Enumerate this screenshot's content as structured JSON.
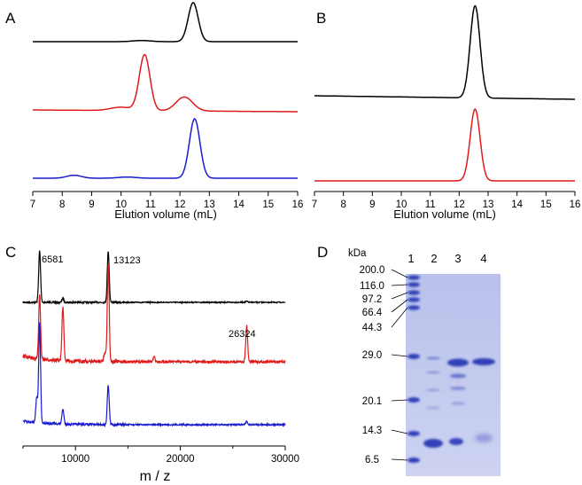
{
  "colors": {
    "black": "#000000",
    "red": "#e0191b",
    "blue": "#1a1acf",
    "gel_bg": "#c7cdee",
    "band": "#3340b8"
  },
  "chart_data": [
    {
      "panel": "A",
      "type": "line",
      "xlabel": "Elution volume (mL)",
      "xlim": [
        7,
        16
      ],
      "xticks": [
        7,
        8,
        9,
        10,
        11,
        12,
        13,
        14,
        15,
        16
      ],
      "series": [
        {
          "color": "black",
          "baseline": 0.0,
          "peaks": [
            {
              "x": 12.45,
              "h": 1.0,
              "w": 0.17
            },
            {
              "x": 10.7,
              "h": 0.03,
              "w": 0.3
            }
          ]
        },
        {
          "color": "red",
          "baseline": 0.0,
          "peaks": [
            {
              "x": 10.8,
              "h": 1.0,
              "w": 0.18
            },
            {
              "x": 12.15,
              "h": 0.25,
              "w": 0.28
            },
            {
              "x": 10.0,
              "h": 0.06,
              "w": 0.35
            }
          ]
        },
        {
          "color": "blue",
          "baseline": 0.0,
          "peaks": [
            {
              "x": 12.5,
              "h": 1.0,
              "w": 0.18
            },
            {
              "x": 8.4,
              "h": 0.05,
              "w": 0.25
            },
            {
              "x": 10.2,
              "h": 0.02,
              "w": 0.3
            }
          ]
        }
      ]
    },
    {
      "panel": "B",
      "type": "line",
      "xlabel": "Elution volume (mL)",
      "xlim": [
        7,
        16
      ],
      "xticks": [
        7,
        8,
        9,
        10,
        11,
        12,
        13,
        14,
        15,
        16
      ],
      "series": [
        {
          "color": "black",
          "baseline": 0.0,
          "peaks": [
            {
              "x": 12.55,
              "h": 1.0,
              "w": 0.17
            }
          ]
        },
        {
          "color": "red",
          "baseline": 0.0,
          "peaks": [
            {
              "x": 12.55,
              "h": 1.0,
              "w": 0.17
            }
          ]
        }
      ]
    },
    {
      "panel": "C",
      "type": "line",
      "xlabel": "m / z",
      "xlim": [
        5000,
        30000
      ],
      "xticks": [
        10000,
        20000,
        30000
      ],
      "annotations": [
        "6581",
        "13123",
        "26324"
      ],
      "series": [
        {
          "color": "black",
          "peaks": [
            {
              "x": 6581,
              "h": 1.0
            },
            {
              "x": 8800,
              "h": 0.08
            },
            {
              "x": 13123,
              "h": 1.0
            },
            {
              "x": 26324,
              "h": 0.02
            }
          ]
        },
        {
          "color": "red",
          "peaks": [
            {
              "x": 6581,
              "h": 0.65
            },
            {
              "x": 8800,
              "h": 0.55
            },
            {
              "x": 13123,
              "h": 1.0
            },
            {
              "x": 12800,
              "h": 0.1
            },
            {
              "x": 17500,
              "h": 0.05
            },
            {
              "x": 26324,
              "h": 0.37
            }
          ]
        },
        {
          "color": "blue",
          "peaks": [
            {
              "x": 6581,
              "h": 1.0
            },
            {
              "x": 6300,
              "h": 0.25
            },
            {
              "x": 8800,
              "h": 0.15
            },
            {
              "x": 13123,
              "h": 0.4
            },
            {
              "x": 26324,
              "h": 0.03
            }
          ]
        }
      ]
    }
  ],
  "panels": {
    "a": "A",
    "b": "B",
    "c": "C",
    "d": "D"
  },
  "gel": {
    "unit": "kDa",
    "markers": [
      "200.0",
      "116.0",
      "97.2",
      "66.4",
      "44.3",
      "29.0",
      "20.1",
      "14.3",
      "6.5"
    ],
    "lanes": [
      "1",
      "2",
      "3",
      "4"
    ]
  }
}
